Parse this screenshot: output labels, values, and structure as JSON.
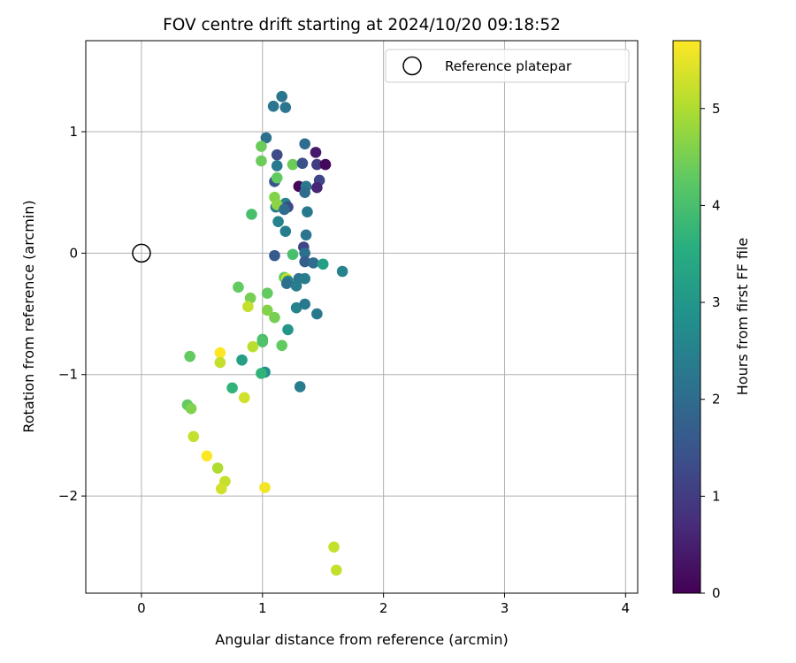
{
  "chart_data": {
    "type": "scatter",
    "title": "FOV centre drift starting at 2024/10/20 09:18:52",
    "xlabel": "Angular distance from reference (arcmin)",
    "ylabel": "Rotation from reference (arcmin)",
    "xlim": [
      -0.46,
      4.1
    ],
    "ylim": [
      -2.8,
      1.75
    ],
    "xticks": [
      0,
      1,
      2,
      3,
      4
    ],
    "yticks": [
      -2,
      -1,
      0,
      1
    ],
    "grid": true,
    "legend": {
      "position": "top-right",
      "entries": [
        "Reference platepar"
      ]
    },
    "colorbar": {
      "label": "Hours from first FF file",
      "colormap": "viridis",
      "range": [
        0,
        5.7
      ],
      "ticks": [
        0,
        1,
        2,
        3,
        4,
        5
      ]
    },
    "reference_point": {
      "x": 0,
      "y": 0
    },
    "points": [
      {
        "x": 1.16,
        "y": 1.29,
        "c": 2.2
      },
      {
        "x": 1.09,
        "y": 1.21,
        "c": 2.2
      },
      {
        "x": 1.19,
        "y": 1.2,
        "c": 2.2
      },
      {
        "x": 1.03,
        "y": 0.95,
        "c": 2.1
      },
      {
        "x": 1.35,
        "y": 0.9,
        "c": 2.0
      },
      {
        "x": 1.44,
        "y": 0.83,
        "c": 0.4
      },
      {
        "x": 1.12,
        "y": 0.81,
        "c": 1.3
      },
      {
        "x": 0.99,
        "y": 0.88,
        "c": 4.4
      },
      {
        "x": 0.99,
        "y": 0.76,
        "c": 4.4
      },
      {
        "x": 1.25,
        "y": 0.73,
        "c": 4.4
      },
      {
        "x": 1.33,
        "y": 0.74,
        "c": 1.4
      },
      {
        "x": 1.45,
        "y": 0.73,
        "c": 1.0
      },
      {
        "x": 1.52,
        "y": 0.73,
        "c": 0.1
      },
      {
        "x": 1.12,
        "y": 0.72,
        "c": 2.3
      },
      {
        "x": 1.1,
        "y": 0.59,
        "c": 1.5
      },
      {
        "x": 1.12,
        "y": 0.62,
        "c": 4.3
      },
      {
        "x": 1.47,
        "y": 0.6,
        "c": 1.2
      },
      {
        "x": 1.3,
        "y": 0.55,
        "c": 0.1
      },
      {
        "x": 1.36,
        "y": 0.55,
        "c": 2.3
      },
      {
        "x": 1.45,
        "y": 0.54,
        "c": 0.6
      },
      {
        "x": 1.35,
        "y": 0.5,
        "c": 2.0
      },
      {
        "x": 1.1,
        "y": 0.46,
        "c": 4.6
      },
      {
        "x": 1.19,
        "y": 0.41,
        "c": 2.5
      },
      {
        "x": 1.11,
        "y": 0.38,
        "c": 2.4
      },
      {
        "x": 1.21,
        "y": 0.38,
        "c": 1.3
      },
      {
        "x": 1.12,
        "y": 0.4,
        "c": 4.7
      },
      {
        "x": 1.18,
        "y": 0.36,
        "c": 2.0
      },
      {
        "x": 1.37,
        "y": 0.34,
        "c": 2.3
      },
      {
        "x": 0.91,
        "y": 0.32,
        "c": 4.0
      },
      {
        "x": 1.13,
        "y": 0.26,
        "c": 2.5
      },
      {
        "x": 1.19,
        "y": 0.18,
        "c": 2.4
      },
      {
        "x": 1.36,
        "y": 0.15,
        "c": 2.2
      },
      {
        "x": 1.34,
        "y": 0.05,
        "c": 1.2
      },
      {
        "x": 1.35,
        "y": 0.0,
        "c": 2.1
      },
      {
        "x": 1.1,
        "y": -0.02,
        "c": 1.6
      },
      {
        "x": 1.25,
        "y": -0.01,
        "c": 4.0
      },
      {
        "x": 1.35,
        "y": -0.07,
        "c": 1.7
      },
      {
        "x": 1.42,
        "y": -0.08,
        "c": 2.0
      },
      {
        "x": 1.5,
        "y": -0.09,
        "c": 3.2
      },
      {
        "x": 1.66,
        "y": -0.15,
        "c": 2.5
      },
      {
        "x": 1.18,
        "y": -0.2,
        "c": 4.3
      },
      {
        "x": 1.2,
        "y": -0.21,
        "c": 5.2
      },
      {
        "x": 1.21,
        "y": -0.23,
        "c": 2.5
      },
      {
        "x": 1.3,
        "y": -0.21,
        "c": 2.2
      },
      {
        "x": 1.35,
        "y": -0.21,
        "c": 2.4
      },
      {
        "x": 1.2,
        "y": -0.25,
        "c": 2.1
      },
      {
        "x": 1.28,
        "y": -0.27,
        "c": 2.4
      },
      {
        "x": 0.8,
        "y": -0.28,
        "c": 4.3
      },
      {
        "x": 1.04,
        "y": -0.33,
        "c": 4.3
      },
      {
        "x": 0.9,
        "y": -0.37,
        "c": 4.5
      },
      {
        "x": 0.88,
        "y": -0.44,
        "c": 5.2
      },
      {
        "x": 1.28,
        "y": -0.45,
        "c": 2.5
      },
      {
        "x": 1.35,
        "y": -0.42,
        "c": 2.3
      },
      {
        "x": 1.04,
        "y": -0.47,
        "c": 4.6
      },
      {
        "x": 1.45,
        "y": -0.5,
        "c": 2.3
      },
      {
        "x": 1.1,
        "y": -0.53,
        "c": 4.5
      },
      {
        "x": 1.21,
        "y": -0.63,
        "c": 3.0
      },
      {
        "x": 1.0,
        "y": -0.71,
        "c": 4.0
      },
      {
        "x": 1.0,
        "y": -0.73,
        "c": 4.1
      },
      {
        "x": 0.92,
        "y": -0.77,
        "c": 5.1
      },
      {
        "x": 1.16,
        "y": -0.76,
        "c": 4.3
      },
      {
        "x": 0.65,
        "y": -0.82,
        "c": 5.7
      },
      {
        "x": 0.4,
        "y": -0.85,
        "c": 4.3
      },
      {
        "x": 0.65,
        "y": -0.9,
        "c": 5.2
      },
      {
        "x": 0.83,
        "y": -0.88,
        "c": 3.2
      },
      {
        "x": 1.02,
        "y": -0.98,
        "c": 2.8
      },
      {
        "x": 0.99,
        "y": -0.99,
        "c": 3.7
      },
      {
        "x": 0.75,
        "y": -1.11,
        "c": 3.7
      },
      {
        "x": 1.31,
        "y": -1.1,
        "c": 2.4
      },
      {
        "x": 0.85,
        "y": -1.19,
        "c": 5.3
      },
      {
        "x": 0.38,
        "y": -1.25,
        "c": 4.3
      },
      {
        "x": 0.41,
        "y": -1.28,
        "c": 4.6
      },
      {
        "x": 0.43,
        "y": -1.51,
        "c": 5.2
      },
      {
        "x": 0.54,
        "y": -1.67,
        "c": 5.7
      },
      {
        "x": 0.63,
        "y": -1.77,
        "c": 5.0
      },
      {
        "x": 0.69,
        "y": -1.88,
        "c": 5.2
      },
      {
        "x": 0.66,
        "y": -1.94,
        "c": 5.3
      },
      {
        "x": 1.02,
        "y": -1.93,
        "c": 5.6
      },
      {
        "x": 1.59,
        "y": -2.42,
        "c": 5.2
      },
      {
        "x": 1.61,
        "y": -2.61,
        "c": 5.2
      }
    ]
  }
}
